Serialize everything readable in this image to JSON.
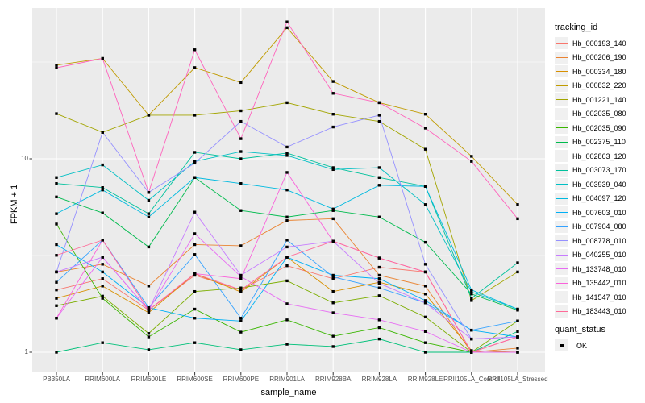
{
  "figure": {
    "bg": "#FFFFFF",
    "panel_bg": "#EBEBEB",
    "grid_color": "#FFFFFF",
    "axis_text_color": "#4D4D4D",
    "tick_mark_color": "#333333",
    "point_color": "#000000"
  },
  "chart_data": {
    "type": "line",
    "title": "",
    "xlabel": "sample_name",
    "ylabel": "FPKM + 1",
    "y_scale": "log10",
    "y_tick_labels": [
      "10",
      "1"
    ],
    "y_tick_values": [
      10,
      1
    ],
    "y_minor_gridlines": [
      3.1623,
      31.623
    ],
    "ylim": [
      0.93,
      57
    ],
    "grid": true,
    "legend_position": "right",
    "point_shape": "filled-square",
    "legend_title": "tracking_id",
    "categories": [
      "PB350LA",
      "RRIM600LA",
      "RRIM600LE",
      "RRIM600SE",
      "RRIM600PE",
      "RRIM901LA",
      "RRIM928BA",
      "RRIM928LA",
      "RRIM928LE",
      "RRII105LA_Control",
      "RRII105LA_Stressed"
    ],
    "series": [
      {
        "name": "Hb_000193_140",
        "color": "#F8766D",
        "values": [
          2.1,
          2.4,
          1.65,
          2.5,
          2.1,
          2.8,
          2.4,
          2.75,
          2.6,
          1.0,
          1.2
        ]
      },
      {
        "name": "Hb_000206_190",
        "color": "#EA8331",
        "values": [
          2.6,
          2.85,
          2.2,
          3.6,
          3.55,
          4.8,
          4.9,
          2.5,
          2.2,
          1.0,
          1.05
        ]
      },
      {
        "name": "Hb_000334_180",
        "color": "#D89000",
        "values": [
          1.9,
          2.2,
          1.6,
          2.55,
          2.05,
          3.1,
          2.06,
          2.3,
          2.0,
          1.02,
          1.0
        ]
      },
      {
        "name": "Hb_000832_220",
        "color": "#C09B00",
        "values": [
          30.5,
          33.0,
          16.8,
          29.6,
          24.8,
          47.6,
          25.1,
          19.5,
          17.0,
          10.3,
          5.8
        ]
      },
      {
        "name": "Hb_001221_140",
        "color": "#A3A500",
        "values": [
          17.1,
          13.7,
          16.8,
          16.8,
          17.7,
          19.5,
          17.0,
          15.6,
          11.2,
          1.85,
          2.6
        ]
      },
      {
        "name": "Hb_002035_080",
        "color": "#7CAE00",
        "values": [
          1.74,
          1.95,
          1.25,
          2.06,
          2.15,
          2.34,
          1.8,
          1.96,
          1.52,
          1.0,
          1.45
        ]
      },
      {
        "name": "Hb_002035_090",
        "color": "#39B600",
        "values": [
          4.6,
          1.9,
          1.2,
          1.67,
          1.27,
          1.47,
          1.21,
          1.34,
          1.12,
          1.0,
          1.0
        ]
      },
      {
        "name": "Hb_002375_110",
        "color": "#00BB4E",
        "values": [
          6.35,
          5.25,
          3.5,
          8.0,
          5.4,
          5.0,
          5.4,
          5.0,
          3.7,
          2.0,
          1.65
        ]
      },
      {
        "name": "Hb_002863_120",
        "color": "#00C079",
        "values": [
          1.0,
          1.12,
          1.03,
          1.12,
          1.03,
          1.1,
          1.07,
          1.17,
          1.0,
          1.0,
          1.28
        ]
      },
      {
        "name": "Hb_003073_170",
        "color": "#00C19C",
        "values": [
          7.45,
          7.1,
          5.2,
          10.8,
          10.0,
          10.7,
          9.0,
          8.0,
          7.2,
          1.9,
          2.9
        ]
      },
      {
        "name": "Hb_003939_040",
        "color": "#00BFC4",
        "values": [
          8.0,
          9.3,
          6.1,
          9.7,
          10.9,
          10.4,
          8.8,
          9.0,
          5.8,
          2.05,
          1.67
        ]
      },
      {
        "name": "Hb_004097_120",
        "color": "#00BAE0",
        "values": [
          5.2,
          6.9,
          5.0,
          8.0,
          7.45,
          6.9,
          5.5,
          7.3,
          7.2,
          2.1,
          1.67
        ]
      },
      {
        "name": "Hb_007603_010",
        "color": "#00B0F6",
        "values": [
          3.6,
          2.6,
          1.7,
          1.5,
          1.45,
          3.1,
          2.5,
          2.4,
          1.85,
          1.3,
          1.2
        ]
      },
      {
        "name": "Hb_007904_080",
        "color": "#35A2FF",
        "values": [
          2.3,
          3.8,
          1.7,
          3.2,
          1.5,
          3.8,
          2.45,
          2.15,
          1.8,
          1.3,
          1.45
        ]
      },
      {
        "name": "Hb_008778_010",
        "color": "#9590FF",
        "values": [
          2.6,
          13.7,
          6.7,
          9.5,
          15.6,
          11.5,
          14.6,
          16.8,
          2.85,
          1.17,
          1.2
        ]
      },
      {
        "name": "Hb_040255_010",
        "color": "#C77CFF",
        "values": [
          2.6,
          3.1,
          1.65,
          5.3,
          2.5,
          3.5,
          3.75,
          2.27,
          1.8,
          1.17,
          1.2
        ]
      },
      {
        "name": "Hb_133748_010",
        "color": "#E76BF3",
        "values": [
          1.5,
          3.1,
          1.65,
          4.1,
          2.46,
          1.78,
          1.6,
          1.47,
          1.28,
          1.0,
          1.0
        ]
      },
      {
        "name": "Hb_135442_010",
        "color": "#FA62DB",
        "values": [
          1.5,
          3.8,
          1.65,
          2.55,
          2.4,
          8.5,
          3.75,
          3.07,
          2.6,
          1.0,
          1.2
        ]
      },
      {
        "name": "Hb_141547_010",
        "color": "#FF62BC",
        "values": [
          29.5,
          33.0,
          6.7,
          36.6,
          12.7,
          51.0,
          21.8,
          19.5,
          14.4,
          9.7,
          4.9
        ]
      },
      {
        "name": "Hb_183443_010",
        "color": "#FF6A98",
        "values": [
          3.17,
          3.8,
          1.65,
          2.55,
          2.1,
          3.1,
          3.75,
          3.07,
          2.6,
          1.0,
          1.2
        ]
      }
    ],
    "legend2": {
      "title": "quant_status",
      "items": [
        {
          "label": "OK",
          "marker": "black-square"
        }
      ]
    }
  }
}
